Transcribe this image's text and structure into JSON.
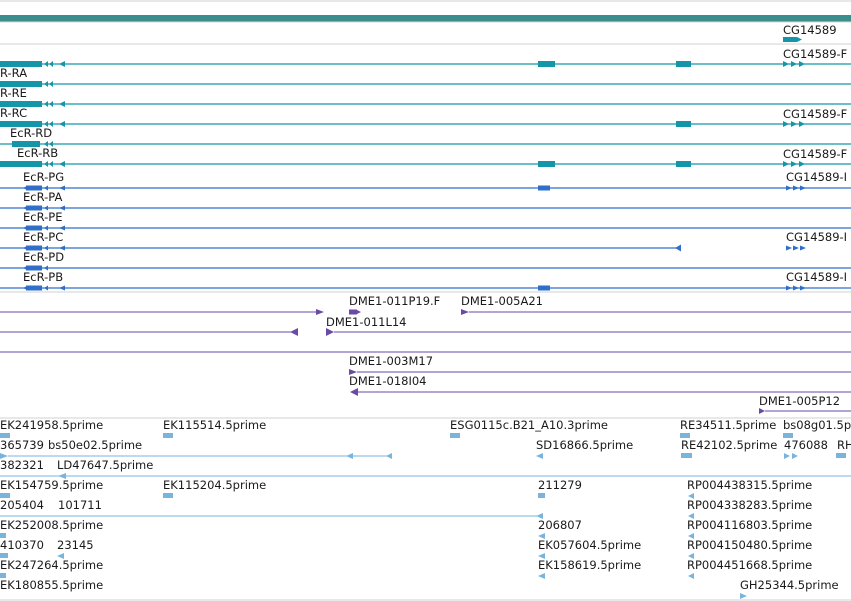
{
  "colors": {
    "band": "#3a8f8c",
    "transcript_teal": "#1596a8",
    "transcript_blue": "#2f6fc9",
    "clone_purple": "#6a4aa6",
    "est_lightblue": "#79b4dc",
    "divider": "#c8c8c8"
  },
  "gene_model": {
    "label": "CG14589",
    "teal_transcripts": [
      "R-RA",
      "R-RE",
      "R-RC",
      "EcR-RD",
      "EcR-RB"
    ],
    "teal_right_labels": [
      "CG14589-F",
      "CG14589-F",
      "CG14589-F"
    ],
    "blue_transcripts": [
      "EcR-PG",
      "EcR-PA",
      "EcR-PE",
      "EcR-PC",
      "EcR-PD",
      "EcR-PB"
    ],
    "blue_right_labels": [
      "CG14589-I",
      "CG14589-I",
      "CG14589-I"
    ]
  },
  "clones": {
    "labels": [
      "DME1-011P19.F",
      "DME1-005A21",
      "DME1-011L14",
      "DME1-003M17",
      "DME1-018I04",
      "DME1-005P12"
    ]
  },
  "ests": {
    "labels": [
      "EK241958.5prime",
      "EK115514.5prime",
      "ESG0115c.B21_A10.3prime",
      "RE34511.5prime",
      "bs08g01.5p",
      "365739",
      "bs50e02.5prime",
      "SD16866.5prime",
      "RE42102.5prime",
      "476088",
      "RH",
      "382321",
      "LD47647.5prime",
      "EK154759.5prime",
      "EK115204.5prime",
      "211279",
      "RP004438315.5prime",
      "205404",
      "101711",
      "RP004338283.5prime",
      "EK252008.5prime",
      "206807",
      "RP004116803.5prime",
      "410370",
      "23145",
      "EK057604.5prime",
      "RP004150480.5prime",
      "EK247264.5prime",
      "EK158619.5prime",
      "RP004451668.5prime",
      "EK180855.5prime",
      "GH25344.5prime"
    ]
  }
}
